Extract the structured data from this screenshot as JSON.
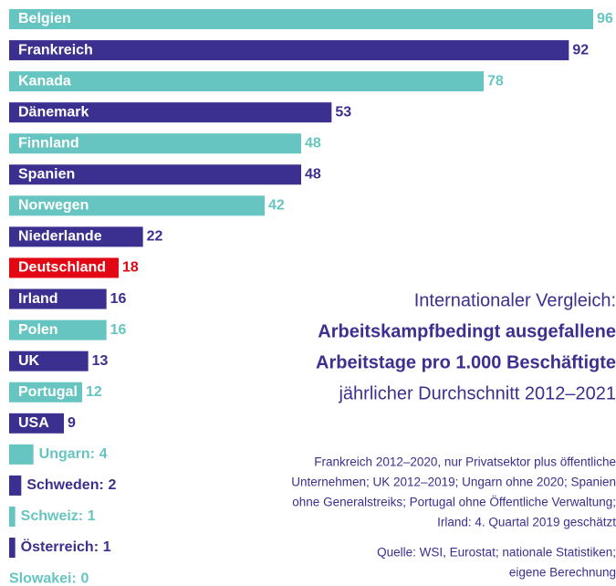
{
  "chart_data": {
    "type": "bar",
    "orientation": "horizontal",
    "categories": [
      "Belgien",
      "Frankreich",
      "Kanada",
      "Dänemark",
      "Finnland",
      "Spanien",
      "Norwegen",
      "Niederlande",
      "Deutschland",
      "Irland",
      "Polen",
      "UK",
      "Portugal",
      "USA",
      "Ungarn",
      "Schweden",
      "Schweiz",
      "Österreich",
      "Slowakei"
    ],
    "values": [
      96,
      92,
      78,
      53,
      48,
      48,
      42,
      22,
      18,
      16,
      16,
      13,
      12,
      9,
      4,
      2,
      1,
      1,
      0
    ],
    "colors": [
      "#66c5c1",
      "#3b2f8f",
      "#66c5c1",
      "#3b2f8f",
      "#66c5c1",
      "#3b2f8f",
      "#66c5c1",
      "#3b2f8f",
      "#e30613",
      "#3b2f8f",
      "#66c5c1",
      "#3b2f8f",
      "#66c5c1",
      "#3b2f8f",
      "#66c5c1",
      "#3b2f8f",
      "#66c5c1",
      "#3b2f8f",
      "#66c5c1"
    ],
    "xlim": [
      0,
      96
    ],
    "title": "Internationaler Vergleich:",
    "subtitle_lines": [
      "Arbeitskampfbedingt ausgefallene",
      "Arbeitstage pro 1.000 Beschäftigte"
    ],
    "period": "jährlicher Durchschnitt 2012–2021",
    "notes": [
      "Frankreich 2012–2020, nur Privatsektor plus öffentliche",
      "Unternehmen; UK 2012–2019; Ungarn ohne 2020; Spanien",
      "ohne Generalstreiks; Portugal ohne Öffentliche Verwaltung;",
      "Irland: 4. Quartal 2019 geschätzt"
    ],
    "source": [
      "Quelle: WSI, Eurostat; nationale Statistiken;",
      "eigene Berechnung"
    ]
  }
}
